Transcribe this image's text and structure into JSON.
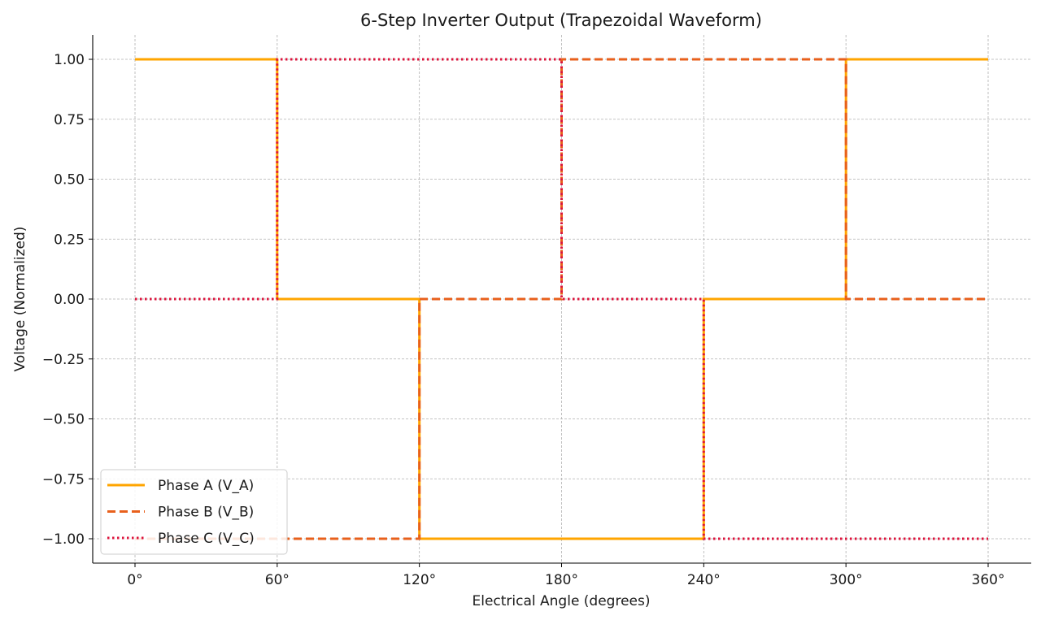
{
  "chart_data": {
    "type": "line",
    "title": "6-Step Inverter Output (Trapezoidal Waveform)",
    "xlabel": "Electrical Angle (degrees)",
    "ylabel": "Voltage (Normalized)",
    "xlim": [
      -15,
      375
    ],
    "ylim": [
      -1.1,
      1.1
    ],
    "x_ticks": [
      0,
      60,
      120,
      180,
      240,
      300,
      360
    ],
    "x_tick_labels": [
      "0°",
      "60°",
      "120°",
      "180°",
      "240°",
      "300°",
      "360°"
    ],
    "y_ticks": [
      1.0,
      0.75,
      0.5,
      0.25,
      0.0,
      -0.25,
      -0.5,
      -0.75,
      -1.0
    ],
    "y_tick_labels": [
      "1.00",
      "0.75",
      "0.50",
      "0.25",
      "0.00",
      "−0.25",
      "−0.50",
      "−0.75",
      "−1.00"
    ],
    "grid": true,
    "legend_position": "lower-left",
    "series": [
      {
        "name": "Phase A (V_A)",
        "color": "#FFA500",
        "style": "solid",
        "x": [
          0,
          60,
          60,
          120,
          120,
          240,
          240,
          300,
          300,
          360
        ],
        "y": [
          1,
          1,
          0,
          0,
          -1,
          -1,
          0,
          0,
          1,
          1
        ]
      },
      {
        "name": "Phase B (V_B)",
        "color": "#E8601C",
        "style": "dashed",
        "x": [
          0,
          120,
          120,
          180,
          180,
          300,
          300,
          360
        ],
        "y": [
          -1,
          -1,
          0,
          0,
          1,
          1,
          0,
          0
        ]
      },
      {
        "name": "Phase C (V_C)",
        "color": "#DC143C",
        "style": "dotted",
        "x": [
          0,
          60,
          60,
          180,
          180,
          240,
          240,
          360
        ],
        "y": [
          0,
          0,
          1,
          1,
          0,
          0,
          -1,
          -1
        ]
      }
    ]
  }
}
